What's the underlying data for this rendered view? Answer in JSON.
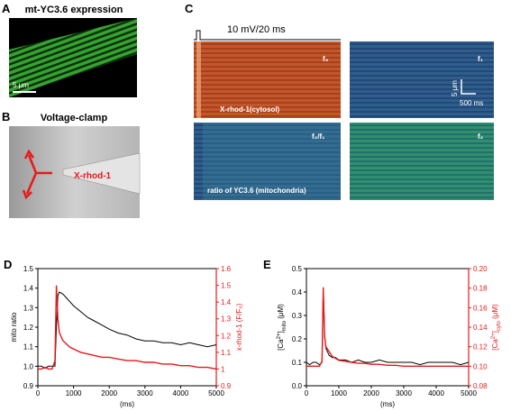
{
  "panels": {
    "A": {
      "letter": "A",
      "title": "mt-YC3.6 expression",
      "scale": "5 μm"
    },
    "B": {
      "letter": "B",
      "title": "Voltage-clamp",
      "label": "X-rhod-1"
    },
    "C": {
      "letter": "C",
      "protocol": "10 mV/20 ms",
      "images": [
        {
          "tag": "f₃",
          "caption": "X-rhod-1(cytosol)"
        },
        {
          "tag": "f₁"
        },
        {
          "tag": "f₂/f₁",
          "caption": "ratio of YC3.6 (mitochondria)"
        },
        {
          "tag": "f₂"
        }
      ],
      "scale_y": "5 μm",
      "scale_x": "500 ms"
    }
  },
  "chart_data": [
    {
      "type": "line",
      "letter": "D",
      "xlabel": "(ms)",
      "ylabel": "mito ratio",
      "y2label": "x-rhod-1 (F/F₀)",
      "x": [
        0,
        100,
        200,
        300,
        400,
        480,
        520,
        560,
        600,
        700,
        800,
        900,
        1000,
        1200,
        1400,
        1600,
        1800,
        2000,
        2250,
        2500,
        2750,
        3000,
        3250,
        3500,
        3750,
        4000,
        4250,
        4500,
        4750,
        5000
      ],
      "xlim": [
        0,
        5000
      ],
      "xticks": [
        0,
        1000,
        2000,
        3000,
        4000,
        5000
      ],
      "ylim": [
        0.9,
        1.5
      ],
      "yticks": [
        0.9,
        {
          "value": 1.0,
          "label": "1.0"
        },
        1.1,
        1.2,
        1.3,
        1.4,
        1.5
      ],
      "y2lim": [
        0.9,
        1.6
      ],
      "y2ticks": [
        0.9,
        1,
        1.1,
        1.2,
        1.3,
        1.4,
        1.5,
        1.6
      ],
      "y2color": "#e8191a",
      "series": [
        {
          "color": "#000000",
          "values": [
            1.0,
            1.0,
            0.99,
            1.0,
            1.0,
            1.0,
            1.2,
            1.36,
            1.38,
            1.37,
            1.35,
            1.33,
            1.31,
            1.28,
            1.25,
            1.23,
            1.21,
            1.19,
            1.17,
            1.16,
            1.14,
            1.13,
            1.13,
            1.12,
            1.12,
            1.11,
            1.12,
            1.11,
            1.1,
            1.11
          ]
        },
        {
          "color": "#e8191a",
          "axis": "y2",
          "values": [
            1.0,
            1.0,
            1.01,
            1.0,
            1.0,
            1.05,
            1.5,
            1.3,
            1.22,
            1.17,
            1.15,
            1.13,
            1.12,
            1.1,
            1.09,
            1.08,
            1.07,
            1.07,
            1.06,
            1.05,
            1.05,
            1.04,
            1.04,
            1.03,
            1.03,
            1.02,
            1.02,
            1.01,
            1.01,
            1.0
          ]
        }
      ]
    },
    {
      "type": "line",
      "letter": "E",
      "xlabel": "(ms)",
      "ylabel_parts": [
        "[Ca",
        "2+",
        "]",
        "mito",
        " (μM)"
      ],
      "y2label_parts": [
        "[Ca",
        "2+",
        "]",
        "cyto",
        " (μM)"
      ],
      "x": [
        0,
        100,
        200,
        300,
        400,
        480,
        520,
        560,
        600,
        700,
        800,
        900,
        1000,
        1200,
        1400,
        1600,
        1800,
        2000,
        2250,
        2500,
        2750,
        3000,
        3250,
        3500,
        3750,
        4000,
        4250,
        4500,
        4750,
        5000
      ],
      "xlim": [
        0,
        5000
      ],
      "xticks": [
        0,
        1000,
        2000,
        3000,
        4000,
        5000
      ],
      "ylim": [
        0,
        0.5
      ],
      "yticks": [
        {
          "value": 0,
          "label": "0.0"
        },
        0.1,
        0.2,
        0.3,
        0.4,
        0.5
      ],
      "y2lim": [
        0.08,
        0.2
      ],
      "y2ticks": [
        0.08,
        {
          "value": 0.1,
          "label": "0.10"
        },
        0.12,
        0.14,
        0.16,
        0.18,
        {
          "value": 0.2,
          "label": "0.20"
        }
      ],
      "y2color": "#e8191a",
      "series": [
        {
          "color": "#000000",
          "values": [
            0.1,
            0.09,
            0.1,
            0.1,
            0.09,
            0.1,
            0.42,
            0.22,
            0.16,
            0.13,
            0.12,
            0.12,
            0.11,
            0.11,
            0.1,
            0.11,
            0.1,
            0.1,
            0.11,
            0.1,
            0.1,
            0.1,
            0.1,
            0.09,
            0.1,
            0.1,
            0.1,
            0.1,
            0.09,
            0.1
          ]
        },
        {
          "color": "#e8191a",
          "axis": "y2",
          "values": [
            0.1,
            0.1,
            0.1,
            0.1,
            0.1,
            0.105,
            0.18,
            0.13,
            0.12,
            0.115,
            0.11,
            0.108,
            0.106,
            0.105,
            0.104,
            0.103,
            0.103,
            0.102,
            0.102,
            0.101,
            0.101,
            0.1,
            0.1,
            0.1,
            0.1,
            0.1,
            0.1,
            0.1,
            0.1,
            0.1
          ]
        }
      ]
    }
  ]
}
